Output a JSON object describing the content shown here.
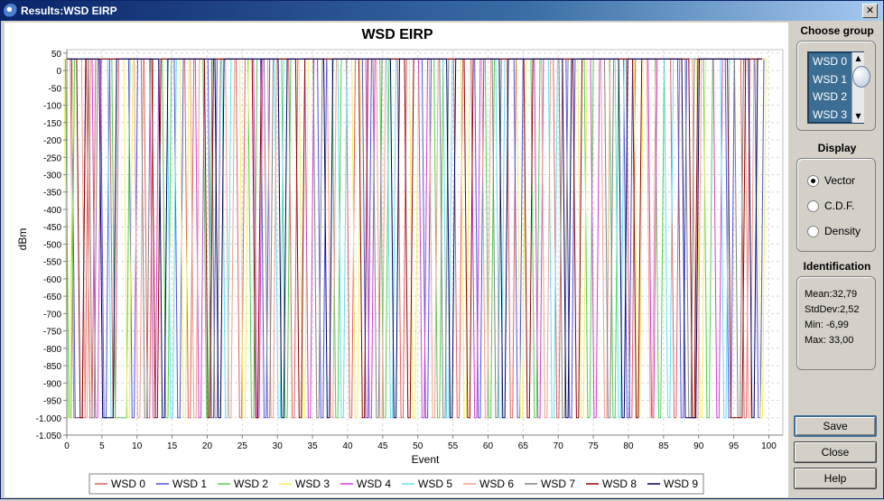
{
  "window": {
    "title": "Results:WSD EIRP",
    "close_glyph": "✕"
  },
  "chart_data": {
    "type": "line",
    "title": "WSD EIRP",
    "xlabel": "Event",
    "ylabel": "dBm",
    "xlim": [
      0,
      102
    ],
    "ylim": [
      -1050,
      60
    ],
    "xticks": [
      0,
      5,
      10,
      15,
      20,
      25,
      30,
      35,
      40,
      45,
      50,
      55,
      60,
      65,
      70,
      75,
      80,
      85,
      90,
      95,
      100
    ],
    "xtick_labels": [
      "0",
      "5",
      "10",
      "15",
      "20",
      "25",
      "30",
      "35",
      "40",
      "45",
      "50",
      "55",
      "60",
      "65",
      "70",
      "75",
      "80",
      "85",
      "90",
      "95",
      "100"
    ],
    "yticks": [
      50,
      0,
      -50,
      -100,
      -150,
      -200,
      -250,
      -300,
      -350,
      -400,
      -450,
      -500,
      -550,
      -600,
      -650,
      -700,
      -750,
      -800,
      -850,
      -900,
      -950,
      -1000,
      -1050
    ],
    "ytick_labels": [
      "50",
      "0",
      "-50",
      "-100",
      "-150",
      "-200",
      "-250",
      "-300",
      "-350",
      "-400",
      "-450",
      "-500",
      "-550",
      "-600",
      "-650",
      "-700",
      "-750",
      "-800",
      "-850",
      "-900",
      "-950",
      "-1.000",
      "-1.050"
    ],
    "grid": true,
    "legend_position": "bottom",
    "series": [
      {
        "name": "WSD 0",
        "color": "#e06060",
        "dips": [
          [
            1,
            2.6
          ],
          [
            3.3,
            3.6
          ],
          [
            6.6,
            6.9
          ],
          [
            11.5,
            11.8
          ],
          [
            17.3,
            17.6
          ],
          [
            24.6,
            24.9
          ],
          [
            32.1,
            32.4
          ],
          [
            40.3,
            40.6
          ],
          [
            47.6,
            47.9
          ],
          [
            55.6,
            55.9
          ],
          [
            63.2,
            63.5
          ],
          [
            69.8,
            70.1
          ],
          [
            80.2,
            80.5
          ],
          [
            86.5,
            86.8
          ],
          [
            96.5,
            96.8
          ]
        ]
      },
      {
        "name": "WSD 1",
        "color": "#5050e0",
        "dips": [
          [
            1.2,
            2.2
          ],
          [
            5.3,
            5.6
          ],
          [
            9.3,
            9.6
          ],
          [
            15.8,
            16.1
          ],
          [
            20.6,
            20.9
          ],
          [
            28.1,
            28.4
          ],
          [
            36.2,
            36.5
          ],
          [
            42.6,
            42.9
          ],
          [
            51.1,
            51.4
          ],
          [
            58.6,
            58.9
          ],
          [
            64.2,
            64.5
          ],
          [
            71.6,
            71.9
          ],
          [
            79.8,
            80.1
          ],
          [
            87.5,
            87.8
          ],
          [
            94.3,
            94.6
          ],
          [
            98.5,
            98.8
          ]
        ]
      },
      {
        "name": "WSD 2",
        "color": "#50d050",
        "dips": [
          [
            0.3,
            0.6
          ],
          [
            6.9,
            8.5
          ],
          [
            14.1,
            14.4
          ],
          [
            19.9,
            20.2
          ],
          [
            26.3,
            26.6
          ],
          [
            31.1,
            31.4
          ],
          [
            38.3,
            38.6
          ],
          [
            45.1,
            45.4
          ],
          [
            52.8,
            53.1
          ],
          [
            60.1,
            60.4
          ],
          [
            66.6,
            66.9
          ],
          [
            74.2,
            74.5
          ],
          [
            77.8,
            78.1
          ],
          [
            84.3,
            84.6
          ],
          [
            91.2,
            91.5
          ]
        ]
      },
      {
        "name": "WSD 3",
        "color": "#f0f060",
        "dips": [
          [
            0.1,
            0.4
          ],
          [
            8.6,
            8.9
          ],
          [
            16.6,
            16.9
          ],
          [
            25.1,
            25.4
          ],
          [
            33.6,
            33.9
          ],
          [
            41.1,
            41.4
          ],
          [
            49.3,
            49.6
          ],
          [
            56.6,
            56.9
          ],
          [
            64.6,
            64.9
          ],
          [
            73.3,
            73.6
          ],
          [
            81.3,
            81.6
          ],
          [
            90.2,
            90.5
          ],
          [
            98.8,
            99.1
          ]
        ]
      },
      {
        "name": "WSD 4",
        "color": "#d040d0",
        "dips": [
          [
            4.1,
            4.4
          ],
          [
            12.3,
            12.6
          ],
          [
            18.8,
            19.1
          ],
          [
            27.1,
            27.4
          ],
          [
            34.4,
            34.7
          ],
          [
            43.1,
            43.4
          ],
          [
            50.6,
            50.9
          ],
          [
            58.1,
            58.4
          ],
          [
            67.1,
            67.4
          ],
          [
            75.1,
            75.4
          ],
          [
            83.3,
            83.6
          ],
          [
            92.6,
            92.9
          ]
        ]
      },
      {
        "name": "WSD 5",
        "color": "#60e0f0",
        "dips": [
          [
            6.3,
            6.6
          ],
          [
            14.8,
            15.1
          ],
          [
            22.6,
            22.9
          ],
          [
            30.1,
            30.4
          ],
          [
            39.1,
            39.4
          ],
          [
            46.1,
            46.4
          ],
          [
            54.1,
            54.4
          ],
          [
            61.6,
            61.9
          ],
          [
            69.1,
            69.4
          ],
          [
            78.6,
            78.9
          ],
          [
            85.6,
            85.9
          ],
          [
            93.6,
            93.9
          ]
        ]
      },
      {
        "name": "WSD 6",
        "color": "#f0a090",
        "dips": [
          [
            2.6,
            2.9
          ],
          [
            10.1,
            10.4
          ],
          [
            18.1,
            18.4
          ],
          [
            23.1,
            23.4
          ],
          [
            29.1,
            29.4
          ],
          [
            37.6,
            37.9
          ],
          [
            44.6,
            44.9
          ],
          [
            52.1,
            52.4
          ],
          [
            59.6,
            59.9
          ],
          [
            68.1,
            68.4
          ],
          [
            76.6,
            76.9
          ],
          [
            83.1,
            83.4
          ],
          [
            89.6,
            89.9
          ],
          [
            97.1,
            97.4
          ]
        ]
      },
      {
        "name": "WSD 7",
        "color": "#808080",
        "dips": [
          [
            3.6,
            3.9
          ],
          [
            11.1,
            11.4
          ],
          [
            21.1,
            21.4
          ],
          [
            28.6,
            28.9
          ],
          [
            35.6,
            35.9
          ],
          [
            44.1,
            44.4
          ],
          [
            53.6,
            53.9
          ],
          [
            61.1,
            61.4
          ],
          [
            70.6,
            70.9
          ],
          [
            77.1,
            77.4
          ],
          [
            88.6,
            88.9
          ],
          [
            95.6,
            95.9
          ]
        ]
      },
      {
        "name": "WSD 8",
        "color": "#900000",
        "dips": [
          [
            1.9,
            2.2
          ],
          [
            12.6,
            12.9
          ],
          [
            20.1,
            20.4
          ],
          [
            26.9,
            27.2
          ],
          [
            33.1,
            33.4
          ],
          [
            42.1,
            42.4
          ],
          [
            48.6,
            48.9
          ],
          [
            57.1,
            57.4
          ],
          [
            65.6,
            65.9
          ],
          [
            72.6,
            72.9
          ],
          [
            81.1,
            81.4
          ],
          [
            89.1,
            89.4
          ],
          [
            94.6,
            96.2
          ]
        ]
      },
      {
        "name": "WSD 9",
        "color": "#000060",
        "dips": [
          [
            5.1,
            6.6
          ],
          [
            13.6,
            13.9
          ],
          [
            21.6,
            21.9
          ],
          [
            30.6,
            30.9
          ],
          [
            37.1,
            37.4
          ],
          [
            46.6,
            46.9
          ],
          [
            54.6,
            54.9
          ],
          [
            62.1,
            62.4
          ],
          [
            71.1,
            71.4
          ],
          [
            79.1,
            79.4
          ],
          [
            88.1,
            89.6
          ],
          [
            97.6,
            97.9
          ]
        ]
      }
    ],
    "high_value": 33,
    "low_value": -1000,
    "x_end": 99
  },
  "panel": {
    "group_title": "Choose group",
    "group_items": [
      "WSD 0",
      "WSD 1",
      "WSD 2",
      "WSD 3"
    ],
    "display_title": "Display",
    "display_options": [
      "Vector",
      "C.D.F.",
      "Density"
    ],
    "ident_title": "Identification",
    "mean": "Mean:32,79",
    "stddev": "StdDev:2,52",
    "min": "Min: -6,99",
    "max": "Max: 33,00"
  },
  "buttons": {
    "save": "Save",
    "close": "Close",
    "help": "Help"
  }
}
